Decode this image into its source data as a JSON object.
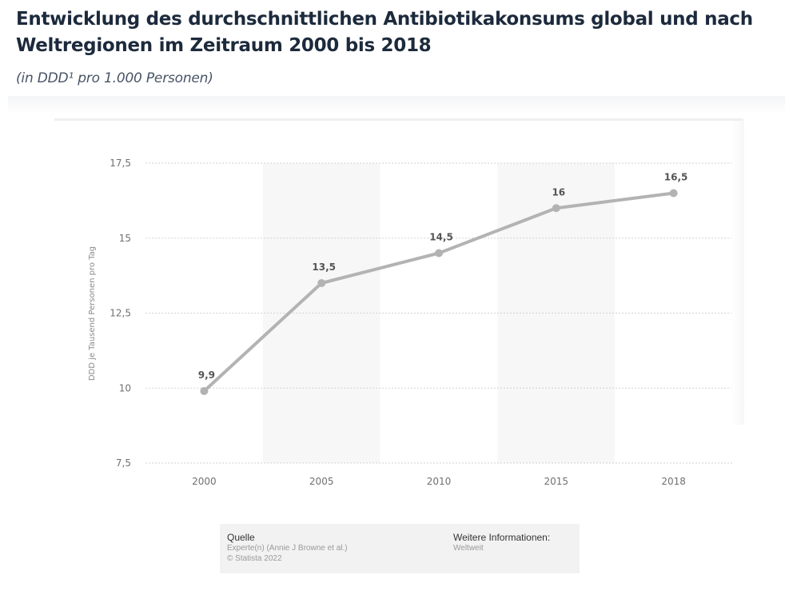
{
  "header": {
    "title": "Entwicklung des durchschnittlichen Antibiotikakonsums global und nach Weltregionen im Zeitraum 2000 bis 2018",
    "subtitle": "(in DDD¹ pro 1.000 Personen)"
  },
  "chart_data": {
    "type": "line",
    "title": "Entwicklung des durchschnittlichen Antibiotikakonsums global und nach Weltregionen im Zeitraum 2000 bis 2018",
    "subtitle": "(in DDD¹ pro 1.000 Personen)",
    "xlabel": "",
    "ylabel": "DDD je Tausend Personen pro Tag",
    "categories": [
      "2000",
      "2005",
      "2010",
      "2015",
      "2018"
    ],
    "series": [
      {
        "name": "Antibiotikakonsum",
        "values": [
          9.9,
          13.5,
          14.5,
          16,
          16.5
        ],
        "labels": [
          "9,9",
          "13,5",
          "14,5",
          "16",
          "16,5"
        ],
        "color": "#b3b3b3"
      }
    ],
    "ylim": [
      7.5,
      17.5
    ],
    "yticks": [
      7.5,
      10,
      12.5,
      15,
      17.5
    ],
    "ytick_labels": [
      "7,5",
      "10",
      "12,5",
      "15",
      "17,5"
    ],
    "grid": true,
    "alternating_bands": true,
    "legend": "none"
  },
  "source": {
    "heading": "Quelle",
    "lines": [
      "Experte(n) (Annie J Browne et al.)",
      "© Statista 2022"
    ],
    "more_heading": "Weitere Informationen:",
    "more_lines": [
      "Weltweit"
    ]
  }
}
